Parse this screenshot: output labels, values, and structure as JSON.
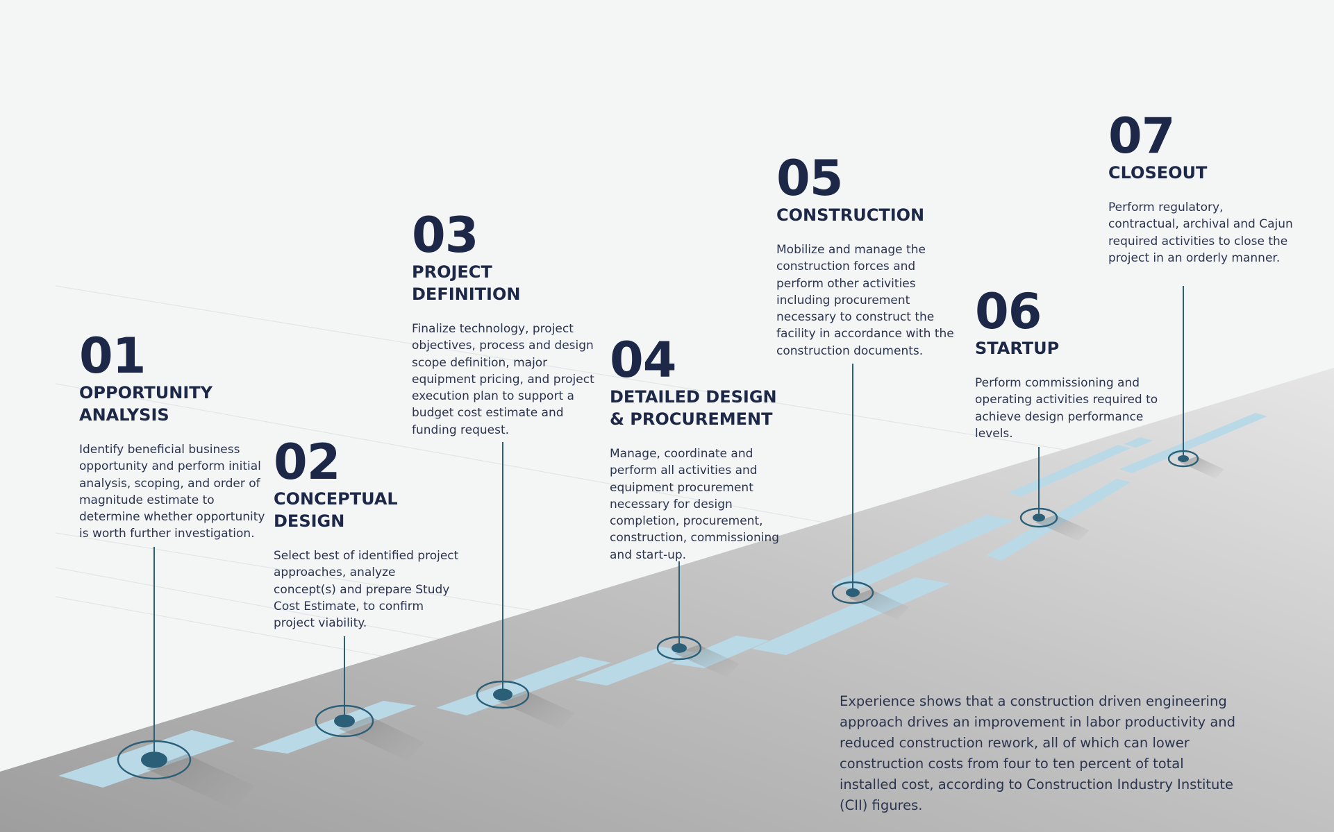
{
  "colors": {
    "background": "#f4f6f6",
    "road": "#bdbdbd",
    "lane": "#b8d8e6",
    "marker": "#2b5f78",
    "text_dark": "#1d2848",
    "guide_line": "#dfe3e5"
  },
  "stages": [
    {
      "number": "01",
      "title": "OPPORTUNITY\nANALYSIS",
      "description": "Identify beneficial business opportunity and perform initial analysis, scoping, and order of magnitude estimate to determine whether opportunity is worth further investigation."
    },
    {
      "number": "02",
      "title": "CONCEPTUAL\nDESIGN",
      "description": "Select best of identified project approaches, analyze concept(s) and prepare Study Cost Estimate, to confirm project viability."
    },
    {
      "number": "03",
      "title": "PROJECT\nDEFINITION",
      "description": "Finalize technology, project objectives, process and design scope definition, major equipment pricing, and project execution plan to support a budget cost estimate and funding request."
    },
    {
      "number": "04",
      "title": "DETAILED DESIGN\n& PROCUREMENT",
      "description": "Manage, coordinate and perform all activities and equipment procurement necessary for design completion, procurement, construction, commissioning and start-up."
    },
    {
      "number": "05",
      "title": "CONSTRUCTION",
      "description": "Mobilize and manage the construction forces and perform other activities including procurement necessary to construct the facility in accordance with the construction documents."
    },
    {
      "number": "06",
      "title": "STARTUP",
      "description": "Perform commissioning and operating activities required to achieve design performance levels."
    },
    {
      "number": "07",
      "title": "CLOSEOUT",
      "description": "Perform regulatory, contractual, archival and Cajun required activities to close the project in an orderly manner."
    }
  ],
  "note": {
    "text": "Experience shows that a construction driven engineering approach drives an improvement in labor productivity and reduced construction rework, all of which can lower construction costs from four to ten percent of total installed cost, according to Construction Industry Institute (CII) figures."
  }
}
